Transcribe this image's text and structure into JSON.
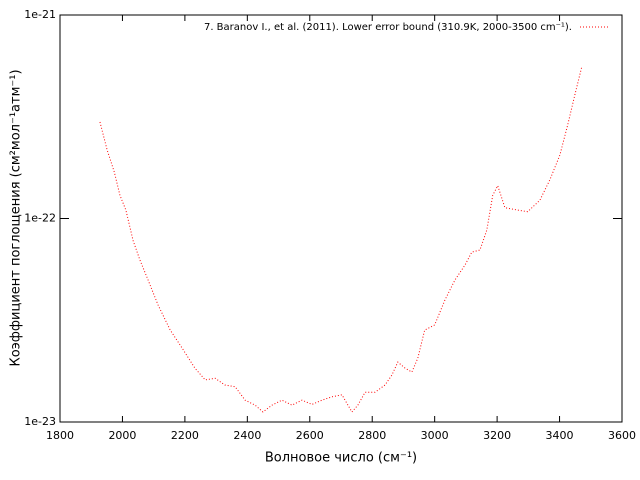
{
  "chart_data": {
    "type": "line",
    "xlabel": "Волновое число (см⁻¹)",
    "ylabel": "Коэффициент поглощения (см²мол⁻¹атм⁻¹)",
    "log_y": true,
    "legend": "top-right",
    "xlim": [
      1800,
      3600
    ],
    "xticks": [
      1800,
      2000,
      2200,
      2400,
      2600,
      2800,
      3000,
      3200,
      3400,
      3600
    ],
    "ylim": [
      1e-23,
      1e-21
    ],
    "yticks": [
      1e-23,
      1e-22,
      1e-21
    ],
    "x": [
      1928,
      1951,
      1974,
      1992,
      2011,
      2034,
      2056,
      2082,
      2114,
      2153,
      2191,
      2232,
      2265,
      2297,
      2328,
      2361,
      2393,
      2425,
      2450,
      2479,
      2511,
      2543,
      2575,
      2607,
      2639,
      2671,
      2703,
      2735,
      2754,
      2777,
      2809,
      2841,
      2863,
      2882,
      2905,
      2927,
      2946,
      2968,
      3000,
      3033,
      3065,
      3097,
      3119,
      3145,
      3167,
      3186,
      3202,
      3225,
      3266,
      3298,
      3337,
      3369,
      3401,
      3426,
      3449,
      3471
    ],
    "series": [
      {
        "name": "7. Baranov I., et al. (2011). Lower error bound (310.9K, 2000-3500 cm⁻¹).",
        "color": "#ff0000",
        "values": [
          2.98e-22,
          2.17e-22,
          1.69e-22,
          1.3e-22,
          1.1e-22,
          7.8e-23,
          6.25e-23,
          4.99e-23,
          3.76e-23,
          2.83e-23,
          2.31e-23,
          1.84e-23,
          1.61e-23,
          1.64e-23,
          1.52e-23,
          1.49e-23,
          1.28e-23,
          1.21e-23,
          1.12e-23,
          1.21e-23,
          1.28e-23,
          1.21e-23,
          1.28e-23,
          1.22e-23,
          1.28e-23,
          1.33e-23,
          1.36e-23,
          1.12e-23,
          1.21e-23,
          1.4e-23,
          1.4e-23,
          1.52e-23,
          1.7e-23,
          1.97e-23,
          1.84e-23,
          1.76e-23,
          2.06e-23,
          2.83e-23,
          3e-23,
          3.98e-23,
          4.99e-23,
          5.9e-23,
          6.84e-23,
          7e-23,
          8.77e-23,
          1.3e-22,
          1.45e-22,
          1.13e-22,
          1.1e-22,
          1.08e-22,
          1.23e-22,
          1.55e-22,
          2.05e-22,
          2.88e-22,
          4.05e-22,
          5.55e-22
        ]
      }
    ]
  }
}
